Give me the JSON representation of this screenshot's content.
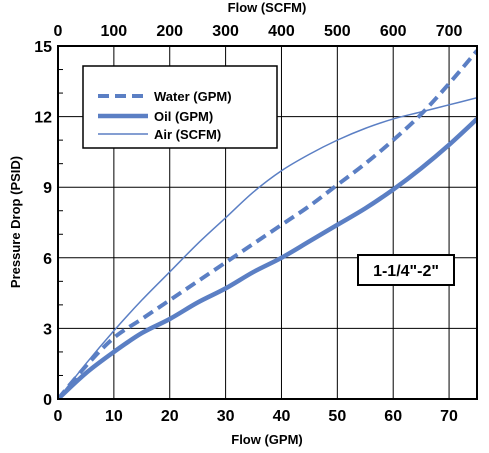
{
  "chart_data": {
    "type": "line",
    "title": "",
    "xlabel": "Flow (GPM)",
    "x2label": "Flow (SCFM)",
    "ylabel": "Pressure Drop (PSID)",
    "xlim": [
      0,
      75
    ],
    "x2lim": [
      0,
      750
    ],
    "ylim": [
      0,
      15
    ],
    "x_ticks": [
      0,
      10,
      20,
      30,
      40,
      50,
      60,
      70
    ],
    "x2_ticks": [
      0,
      100,
      200,
      300,
      400,
      500,
      600,
      700
    ],
    "y_ticks": [
      0,
      3,
      6,
      9,
      12,
      15
    ],
    "grid": true,
    "legend_position": "top-left",
    "annotation": "1-1/4\"-2\"",
    "line_color": "#5b7fc4",
    "series": [
      {
        "name": "Water (GPM)",
        "style": "dashed",
        "axis": "bottom",
        "x": [
          0,
          5,
          10,
          15,
          20,
          25,
          30,
          35,
          40,
          45,
          50,
          55,
          60,
          65,
          70,
          75
        ],
        "y": [
          0,
          1.4,
          2.6,
          3.4,
          4.2,
          5.0,
          5.8,
          6.6,
          7.4,
          8.2,
          9.1,
          10.0,
          11.0,
          12.1,
          13.4,
          14.8
        ]
      },
      {
        "name": "Oil (GPM)",
        "style": "thick",
        "axis": "bottom",
        "x": [
          0,
          5,
          10,
          15,
          20,
          25,
          30,
          35,
          40,
          45,
          50,
          55,
          60,
          65,
          70,
          75
        ],
        "y": [
          0,
          1.1,
          2.0,
          2.8,
          3.4,
          4.1,
          4.7,
          5.4,
          6.0,
          6.7,
          7.4,
          8.1,
          8.9,
          9.8,
          10.8,
          11.9
        ]
      },
      {
        "name": "Air (SCFM)",
        "style": "thin",
        "axis": "top",
        "x": [
          0,
          50,
          100,
          150,
          200,
          250,
          300,
          350,
          400,
          450,
          500,
          550,
          600,
          650,
          700,
          750
        ],
        "y": [
          0,
          1.5,
          2.9,
          4.2,
          5.4,
          6.6,
          7.7,
          8.8,
          9.7,
          10.4,
          11.0,
          11.5,
          11.9,
          12.2,
          12.5,
          12.8
        ]
      }
    ]
  }
}
